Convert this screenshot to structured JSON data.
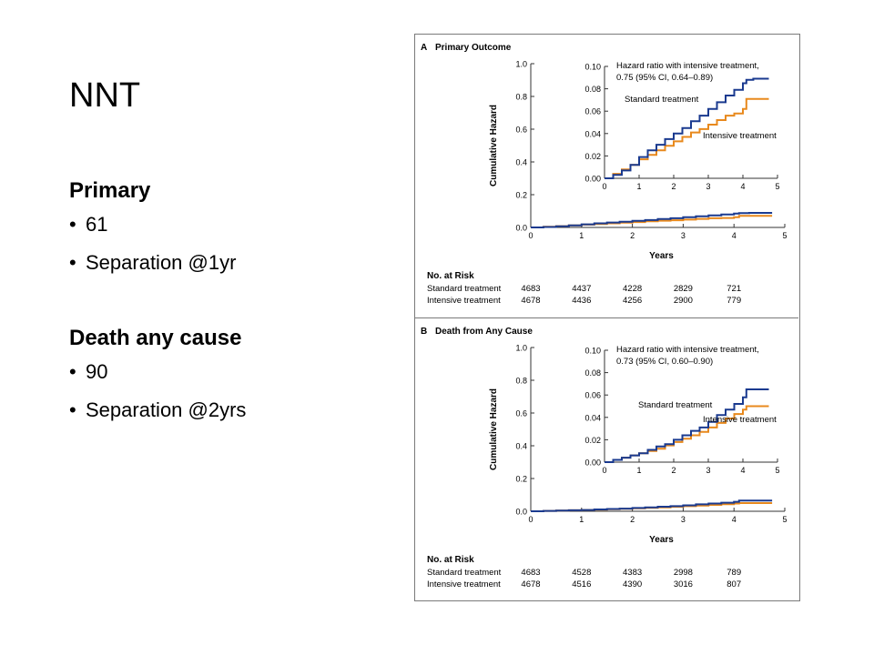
{
  "slide": {
    "title": "NNT",
    "sections": [
      {
        "heading": "Primary",
        "bullets": [
          "61",
          "Separation @1yr"
        ]
      },
      {
        "heading": "Death any cause",
        "bullets": [
          "90",
          "Separation @2yrs"
        ]
      }
    ]
  },
  "colors": {
    "standard": "#1a3a8f",
    "intensive": "#e8891d",
    "frame": "#7a7a7a"
  },
  "chart_data": [
    {
      "type": "line",
      "panel_letter": "A",
      "title": "Primary Outcome",
      "ylabel": "Cumulative Hazard",
      "xlabel": "Years",
      "xlim": [
        0,
        5
      ],
      "ylim": [
        0,
        1.0
      ],
      "x_ticks": [
        "0",
        "1",
        "2",
        "3",
        "4",
        "5"
      ],
      "y_ticks": [
        "0.0",
        "0.2",
        "0.4",
        "0.6",
        "0.8",
        "1.0"
      ],
      "inset": {
        "xlim": [
          0,
          5
        ],
        "ylim": [
          0,
          0.1
        ],
        "x_ticks": [
          "0",
          "1",
          "2",
          "3",
          "4",
          "5"
        ],
        "y_ticks": [
          "0.00",
          "0.02",
          "0.04",
          "0.06",
          "0.08",
          "0.10"
        ],
        "annotation_line1": "Hazard ratio with intensive treatment,",
        "annotation_line2": "0.75 (95% CI, 0.64–0.89)",
        "label_standard": "Standard treatment",
        "label_intensive": "Intensive treatment",
        "standard_label_pos": "above",
        "intensive_label_pos": "below"
      },
      "series": [
        {
          "name": "Standard treatment",
          "x": [
            0,
            0.25,
            0.5,
            0.75,
            1.0,
            1.25,
            1.5,
            1.75,
            2.0,
            2.25,
            2.5,
            2.75,
            3.0,
            3.25,
            3.5,
            3.75,
            4.0,
            4.1,
            4.3,
            4.75
          ],
          "values": [
            0,
            0.003,
            0.007,
            0.012,
            0.019,
            0.025,
            0.03,
            0.035,
            0.04,
            0.045,
            0.051,
            0.056,
            0.062,
            0.068,
            0.074,
            0.079,
            0.085,
            0.088,
            0.089,
            0.089
          ]
        },
        {
          "name": "Intensive treatment",
          "x": [
            0,
            0.25,
            0.5,
            0.75,
            1.0,
            1.25,
            1.5,
            1.75,
            2.0,
            2.25,
            2.5,
            2.75,
            3.0,
            3.25,
            3.5,
            3.75,
            4.0,
            4.1,
            4.3,
            4.75
          ],
          "values": [
            0,
            0.004,
            0.008,
            0.012,
            0.017,
            0.021,
            0.025,
            0.029,
            0.033,
            0.037,
            0.041,
            0.044,
            0.048,
            0.052,
            0.056,
            0.058,
            0.062,
            0.071,
            0.071,
            0.071
          ]
        }
      ],
      "risk_table": {
        "header": "No. at Risk",
        "rows": [
          {
            "label": "Standard treatment",
            "values": [
              "4683",
              "4437",
              "4228",
              "2829",
              "721"
            ]
          },
          {
            "label": "Intensive treatment",
            "values": [
              "4678",
              "4436",
              "4256",
              "2900",
              "779"
            ]
          }
        ]
      }
    },
    {
      "type": "line",
      "panel_letter": "B",
      "title": "Death from Any Cause",
      "ylabel": "Cumulative Hazard",
      "xlabel": "Years",
      "xlim": [
        0,
        5
      ],
      "ylim": [
        0,
        1.0
      ],
      "x_ticks": [
        "0",
        "1",
        "2",
        "3",
        "4",
        "5"
      ],
      "y_ticks": [
        "0.0",
        "0.2",
        "0.4",
        "0.6",
        "0.8",
        "1.0"
      ],
      "inset": {
        "xlim": [
          0,
          5
        ],
        "ylim": [
          0,
          0.1
        ],
        "x_ticks": [
          "0",
          "1",
          "2",
          "3",
          "4",
          "5"
        ],
        "y_ticks": [
          "0.00",
          "0.02",
          "0.04",
          "0.06",
          "0.08",
          "0.10"
        ],
        "annotation_line1": "Hazard ratio with intensive treatment,",
        "annotation_line2": "0.73 (95% CI, 0.60–0.90)",
        "label_standard": "Standard treatment",
        "label_intensive": "Intensive treatment",
        "standard_label_pos": "left",
        "intensive_label_pos": "below"
      },
      "series": [
        {
          "name": "Standard treatment",
          "x": [
            0,
            0.25,
            0.5,
            0.75,
            1.0,
            1.25,
            1.5,
            1.75,
            2.0,
            2.25,
            2.5,
            2.75,
            3.0,
            3.25,
            3.5,
            3.75,
            4.0,
            4.1,
            4.3,
            4.75
          ],
          "values": [
            0,
            0.002,
            0.004,
            0.006,
            0.008,
            0.011,
            0.014,
            0.016,
            0.02,
            0.024,
            0.028,
            0.031,
            0.036,
            0.042,
            0.047,
            0.052,
            0.058,
            0.065,
            0.065,
            0.065
          ]
        },
        {
          "name": "Intensive treatment",
          "x": [
            0,
            0.25,
            0.5,
            0.75,
            1.0,
            1.25,
            1.5,
            1.75,
            2.0,
            2.25,
            2.5,
            2.75,
            3.0,
            3.25,
            3.5,
            3.75,
            4.0,
            4.1,
            4.3,
            4.75
          ],
          "values": [
            0,
            0.002,
            0.004,
            0.006,
            0.008,
            0.01,
            0.012,
            0.015,
            0.018,
            0.021,
            0.024,
            0.027,
            0.031,
            0.035,
            0.039,
            0.043,
            0.047,
            0.05,
            0.05,
            0.05
          ]
        }
      ],
      "risk_table": {
        "header": "No. at Risk",
        "rows": [
          {
            "label": "Standard treatment",
            "values": [
              "4683",
              "4528",
              "4383",
              "2998",
              "789"
            ]
          },
          {
            "label": "Intensive treatment",
            "values": [
              "4678",
              "4516",
              "4390",
              "3016",
              "807"
            ]
          }
        ]
      }
    }
  ]
}
